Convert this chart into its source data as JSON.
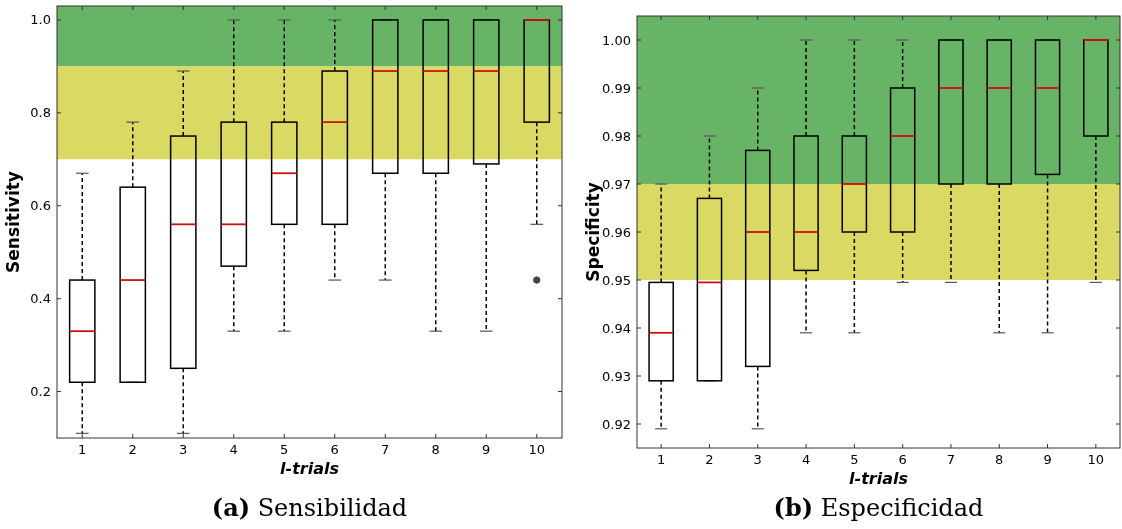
{
  "chart_data": [
    {
      "type": "box",
      "title": "(a) Sensibilidad",
      "xlabel": "l-trials",
      "ylabel": "Sensitivity",
      "categories": [
        "1",
        "2",
        "3",
        "4",
        "5",
        "6",
        "7",
        "8",
        "9",
        "10"
      ],
      "ylim": [
        0.1,
        1.03
      ],
      "yticks": [
        {
          "value": 0.2,
          "label": "0.2"
        },
        {
          "value": 0.4,
          "label": "0.4"
        },
        {
          "value": 0.6,
          "label": "0.6"
        },
        {
          "value": 0.8,
          "label": "0.8"
        },
        {
          "value": 1.0,
          "label": "1.0"
        }
      ],
      "grid": false,
      "bands": [
        {
          "axis": "y",
          "from": 0.9,
          "to": 1.03,
          "label": null,
          "color": "#67b467"
        },
        {
          "axis": "y",
          "from": 0.7,
          "to": 0.9,
          "label": null,
          "color": "#d9d963"
        }
      ],
      "boxes": [
        {
          "low": 0.11,
          "q1": 0.22,
          "median": 0.33,
          "q3": 0.44,
          "high": 0.67
        },
        {
          "low": 0.22,
          "q1": 0.22,
          "median": 0.44,
          "q3": 0.64,
          "high": 0.78
        },
        {
          "low": 0.11,
          "q1": 0.25,
          "median": 0.56,
          "q3": 0.75,
          "high": 0.89
        },
        {
          "low": 0.33,
          "q1": 0.47,
          "median": 0.56,
          "q3": 0.78,
          "high": 1.0
        },
        {
          "low": 0.33,
          "q1": 0.56,
          "median": 0.67,
          "q3": 0.78,
          "high": 1.0
        },
        {
          "low": 0.44,
          "q1": 0.56,
          "median": 0.78,
          "q3": 0.89,
          "high": 1.0
        },
        {
          "low": 0.44,
          "q1": 0.67,
          "median": 0.89,
          "q3": 1.0,
          "high": 1.0
        },
        {
          "low": 0.33,
          "q1": 0.67,
          "median": 0.89,
          "q3": 1.0,
          "high": 1.0
        },
        {
          "low": 0.33,
          "q1": 0.69,
          "median": 0.89,
          "q3": 1.0,
          "high": 1.0
        },
        {
          "low": 0.56,
          "q1": 0.78,
          "median": 1.0,
          "q3": 1.0,
          "high": 1.0,
          "outliers": [
            0.44
          ]
        }
      ]
    },
    {
      "type": "box",
      "title": "(b) Especificidad",
      "xlabel": "l-trials",
      "ylabel": "Specificity",
      "categories": [
        "1",
        "2",
        "3",
        "4",
        "5",
        "6",
        "7",
        "8",
        "9",
        "10"
      ],
      "ylim": [
        0.915,
        1.005
      ],
      "yticks": [
        0.92,
        0.93,
        0.94,
        0.95,
        0.96,
        0.97,
        0.98,
        0.99,
        {
          "value": 1.0,
          "label": "1.00"
        }
      ],
      "grid": false,
      "bands": [
        {
          "axis": "y",
          "from": 0.97,
          "to": 1.005,
          "label": null,
          "color": "#67b467"
        },
        {
          "axis": "y",
          "from": 0.95,
          "to": 0.97,
          "label": null,
          "color": "#d9d963"
        }
      ],
      "boxes": [
        {
          "low": 0.919,
          "q1": 0.929,
          "median": 0.939,
          "q3": 0.9495,
          "high": 0.97
        },
        {
          "low": 0.929,
          "q1": 0.929,
          "median": 0.9495,
          "q3": 0.967,
          "high": 0.98
        },
        {
          "low": 0.919,
          "q1": 0.932,
          "median": 0.96,
          "q3": 0.977,
          "high": 0.99
        },
        {
          "low": 0.939,
          "q1": 0.952,
          "median": 0.96,
          "q3": 0.98,
          "high": 1.0
        },
        {
          "low": 0.939,
          "q1": 0.96,
          "median": 0.97,
          "q3": 0.98,
          "high": 1.0
        },
        {
          "low": 0.9495,
          "q1": 0.96,
          "median": 0.98,
          "q3": 0.99,
          "high": 1.0
        },
        {
          "low": 0.9495,
          "q1": 0.97,
          "median": 0.99,
          "q3": 1.0,
          "high": 1.0
        },
        {
          "low": 0.939,
          "q1": 0.97,
          "median": 0.99,
          "q3": 1.0,
          "high": 1.0
        },
        {
          "low": 0.939,
          "q1": 0.972,
          "median": 0.99,
          "q3": 1.0,
          "high": 1.0
        },
        {
          "low": 0.9495,
          "q1": 0.98,
          "median": 1.0,
          "q3": 1.0,
          "high": 1.0
        }
      ]
    }
  ]
}
